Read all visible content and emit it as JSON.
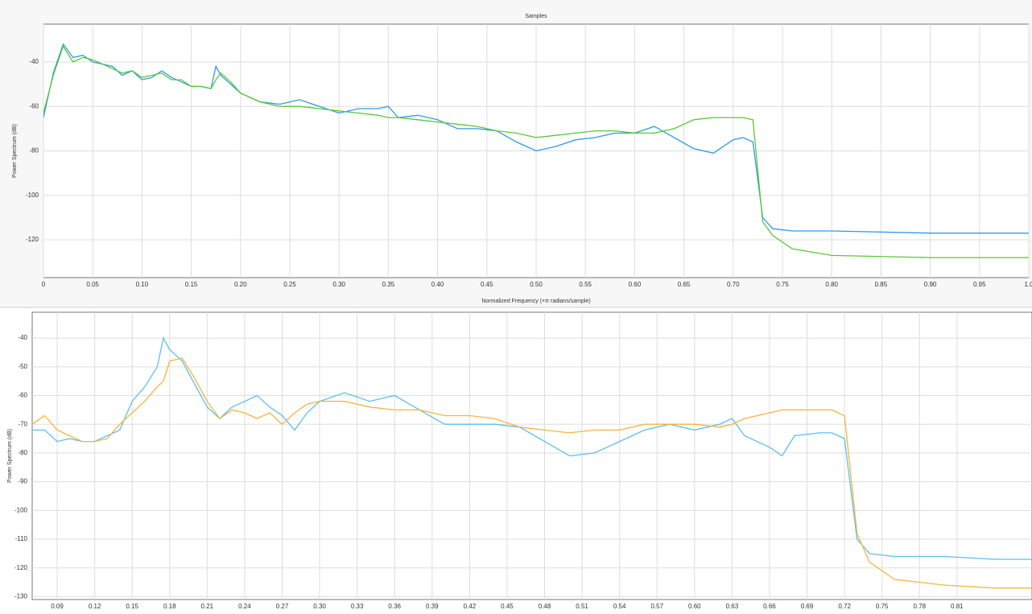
{
  "chart_data": [
    {
      "type": "line",
      "title": "Samples",
      "xlabel": "Normalized Frequency (×π radians/sample)",
      "ylabel": "Power Spectrum (dB)",
      "grid": true,
      "xlim": [
        0,
        1
      ],
      "ylim": [
        -137,
        -23
      ],
      "xticks": [
        0,
        0.05,
        {
          "value": 0.1,
          "label": "0.10"
        },
        0.15,
        {
          "value": 0.2,
          "label": "0.20"
        },
        0.25,
        {
          "value": 0.3,
          "label": "0.30"
        },
        0.35,
        {
          "value": 0.4,
          "label": "0.40"
        },
        0.45,
        {
          "value": 0.5,
          "label": "0.50"
        },
        0.55,
        {
          "value": 0.6,
          "label": "0.60"
        },
        0.65,
        {
          "value": 0.7,
          "label": "0.70"
        },
        0.75,
        {
          "value": 0.8,
          "label": "0.80"
        },
        0.85,
        {
          "value": 0.9,
          "label": "0.90"
        },
        0.95,
        {
          "value": 1,
          "label": "1.0"
        }
      ],
      "yticks": [
        -40,
        -60,
        -80,
        -100,
        -120
      ],
      "x": [
        0,
        0.01,
        0.02,
        0.03,
        0.04,
        0.05,
        0.06,
        0.07,
        0.08,
        0.09,
        0.1,
        0.11,
        0.12,
        0.13,
        0.14,
        0.15,
        0.16,
        0.17,
        0.175,
        0.18,
        0.19,
        0.2,
        0.22,
        0.24,
        0.26,
        0.28,
        0.3,
        0.32,
        0.34,
        0.35,
        0.36,
        0.38,
        0.4,
        0.42,
        0.44,
        0.46,
        0.48,
        0.5,
        0.52,
        0.54,
        0.56,
        0.58,
        0.6,
        0.62,
        0.64,
        0.66,
        0.68,
        0.7,
        0.71,
        0.72,
        0.73,
        0.74,
        0.76,
        0.8,
        0.9,
        1
      ],
      "series": [
        {
          "color": "#2e9be6",
          "values": [
            -65,
            -45,
            -32,
            -38,
            -37,
            -40,
            -41,
            -42,
            -46,
            -44,
            -48,
            -47,
            -44,
            -47,
            -49,
            -51,
            -51,
            -52,
            -42,
            -46,
            -50,
            -54,
            -58,
            -59,
            -57,
            -60,
            -63,
            -61,
            -61,
            -60,
            -65,
            -64,
            -66,
            -70,
            -70,
            -71,
            -76,
            -80,
            -78,
            -75,
            -74,
            -72,
            -72,
            -69,
            -74,
            -79,
            -81,
            -75,
            -74,
            -76,
            -110,
            -115,
            -116,
            -116,
            -117,
            -117
          ]
        },
        {
          "color": "#5cc63a",
          "values": [
            -63,
            -46,
            -33,
            -40,
            -38,
            -39,
            -41,
            -43,
            -45,
            -44,
            -47,
            -46,
            -45,
            -48,
            -48,
            -51,
            -51,
            -52,
            -48,
            -45,
            -49,
            -54,
            -58,
            -60,
            -60,
            -61,
            -62,
            -63,
            -64,
            -65,
            -65,
            -66,
            -67,
            -68,
            -69,
            -71,
            -72,
            -74,
            -73,
            -72,
            -71,
            -71,
            -72,
            -72,
            -70,
            -66,
            -65,
            -65,
            -65,
            -66,
            -112,
            -118,
            -124,
            -127,
            -128,
            -128
          ]
        }
      ]
    },
    {
      "type": "line",
      "ylabel": "Power Spectrum (dB)",
      "grid": true,
      "xlim": [
        0.07,
        0.87
      ],
      "ylim": [
        -131,
        -31
      ],
      "xticks": [
        0.09,
        0.12,
        0.15,
        0.18,
        0.21,
        0.24,
        0.27,
        {
          "value": 0.3,
          "label": "0.30"
        },
        0.33,
        0.36,
        0.39,
        0.42,
        0.45,
        0.48,
        0.51,
        0.54,
        0.57,
        {
          "value": 0.6,
          "label": "0.60"
        },
        0.63,
        0.66,
        0.69,
        0.72,
        0.75,
        0.78,
        0.81
      ],
      "yticks": [
        -40,
        -50,
        -60,
        -70,
        -80,
        -90,
        -100,
        -110,
        -120,
        -130
      ],
      "x": [
        0.07,
        0.08,
        0.09,
        0.1,
        0.11,
        0.12,
        0.13,
        0.14,
        0.15,
        0.16,
        0.17,
        0.175,
        0.18,
        0.19,
        0.2,
        0.21,
        0.22,
        0.23,
        0.24,
        0.25,
        0.26,
        0.27,
        0.28,
        0.29,
        0.3,
        0.32,
        0.34,
        0.36,
        0.38,
        0.4,
        0.42,
        0.44,
        0.46,
        0.48,
        0.5,
        0.52,
        0.54,
        0.56,
        0.58,
        0.6,
        0.62,
        0.63,
        0.64,
        0.66,
        0.67,
        0.68,
        0.7,
        0.71,
        0.72,
        0.73,
        0.74,
        0.76,
        0.8,
        0.84,
        0.87
      ],
      "series": [
        {
          "color": "#5bc0eb",
          "values": [
            -72,
            -72,
            -76,
            -75,
            -76,
            -76,
            -74,
            -72,
            -62,
            -57,
            -50,
            -40,
            -44,
            -48,
            -56,
            -64,
            -68,
            -64,
            -62,
            -60,
            -64,
            -67,
            -72,
            -66,
            -62,
            -59,
            -62,
            -60,
            -65,
            -70,
            -70,
            -70,
            -71,
            -76,
            -81,
            -80,
            -76,
            -72,
            -70,
            -72,
            -70,
            -68,
            -74,
            -78,
            -81,
            -74,
            -73,
            -73,
            -75,
            -110,
            -115,
            -116,
            -116,
            -117,
            -117
          ]
        },
        {
          "color": "#f5b53b",
          "values": [
            -70,
            -67,
            -72,
            -74,
            -76,
            -76,
            -75,
            -70,
            -66,
            -62,
            -57,
            -55,
            -48,
            -47,
            -54,
            -62,
            -68,
            -65,
            -66,
            -68,
            -66,
            -70,
            -66,
            -63,
            -62,
            -62,
            -64,
            -65,
            -65,
            -67,
            -67,
            -68,
            -71,
            -72,
            -73,
            -72,
            -72,
            -70,
            -70,
            -70,
            -71,
            -70,
            -68,
            -66,
            -65,
            -65,
            -65,
            -65,
            -67,
            -108,
            -118,
            -124,
            -126,
            -127,
            -127
          ]
        }
      ]
    }
  ]
}
